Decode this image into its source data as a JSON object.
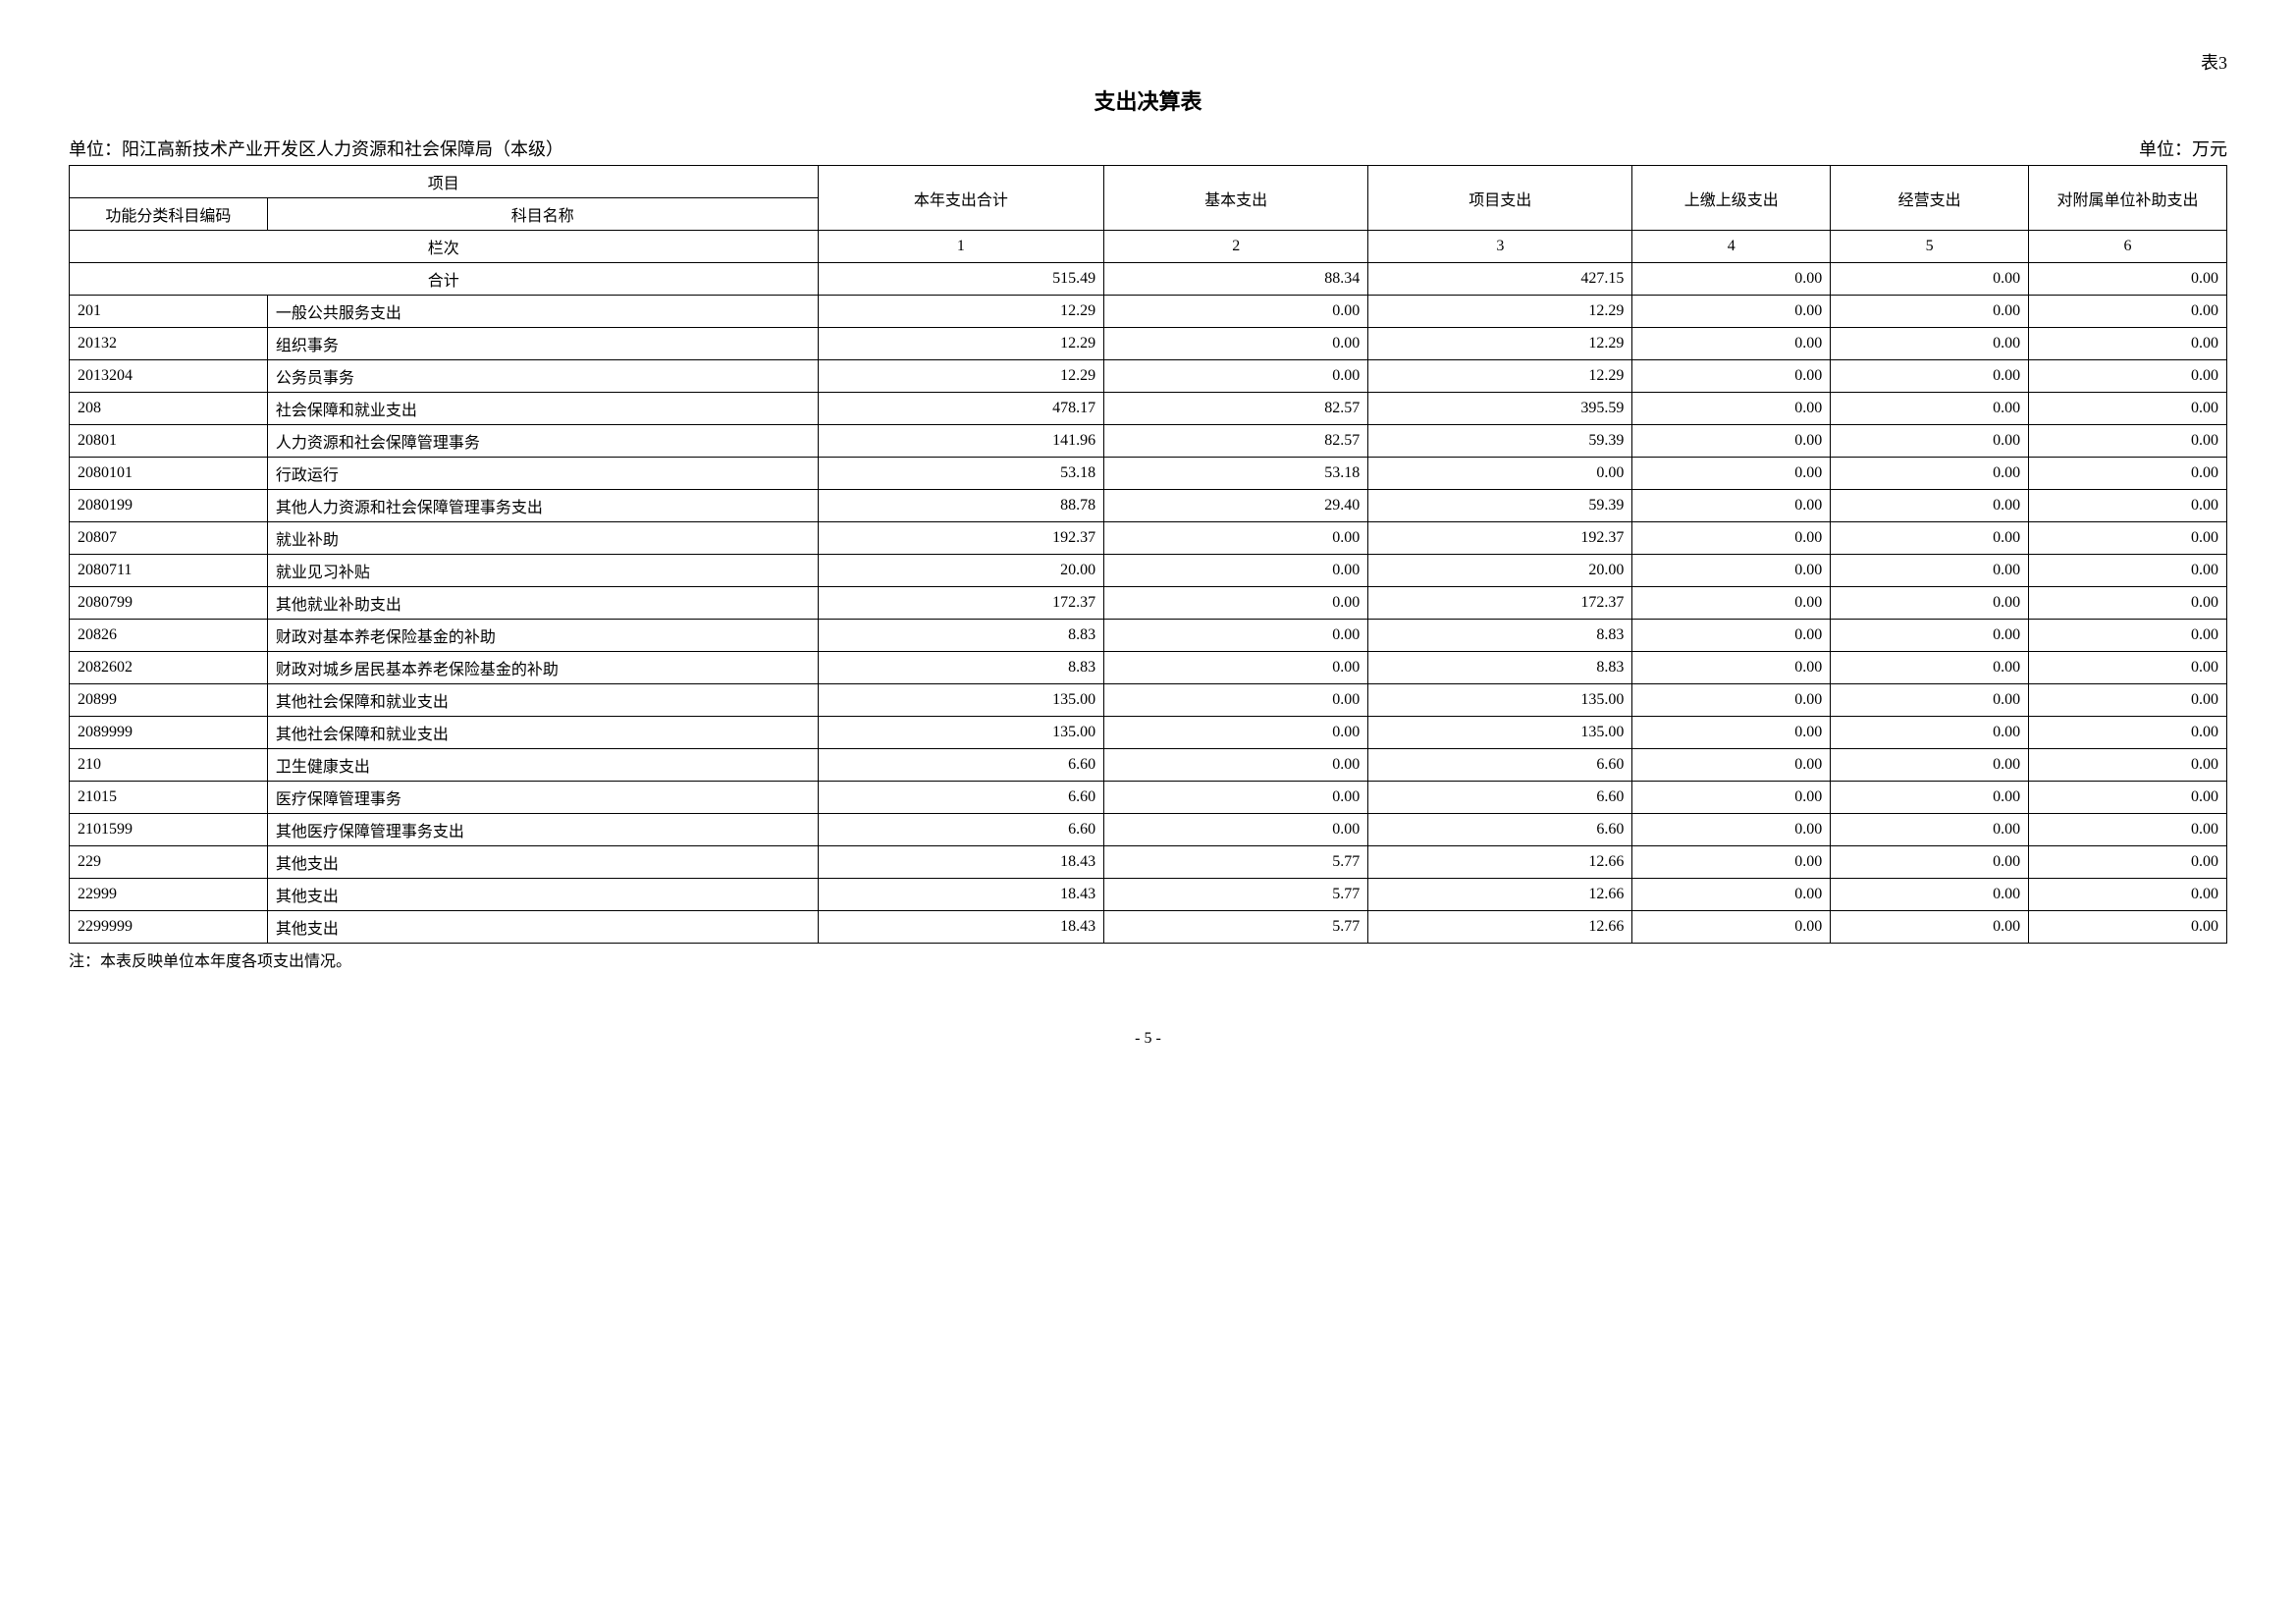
{
  "table_number": "表3",
  "title": "支出决算表",
  "org_label": "单位：阳江高新技术产业开发区人力资源和社会保障局（本级）",
  "unit_label": "单位：万元",
  "headers": {
    "project": "项目",
    "code": "功能分类科目编码",
    "name": "科目名称",
    "col1": "本年支出合计",
    "col2": "基本支出",
    "col3": "项目支出",
    "col4": "上缴上级支出",
    "col5": "经营支出",
    "col6": "对附属单位补助支出",
    "row_label": "栏次",
    "n1": "1",
    "n2": "2",
    "n3": "3",
    "n4": "4",
    "n5": "5",
    "n6": "6",
    "total_label": "合计"
  },
  "total": {
    "v1": "515.49",
    "v2": "88.34",
    "v3": "427.15",
    "v4": "0.00",
    "v5": "0.00",
    "v6": "0.00"
  },
  "rows": [
    {
      "code": "201",
      "name": "一般公共服务支出",
      "v1": "12.29",
      "v2": "0.00",
      "v3": "12.29",
      "v4": "0.00",
      "v5": "0.00",
      "v6": "0.00"
    },
    {
      "code": "20132",
      "name": "组织事务",
      "v1": "12.29",
      "v2": "0.00",
      "v3": "12.29",
      "v4": "0.00",
      "v5": "0.00",
      "v6": "0.00"
    },
    {
      "code": "2013204",
      "name": "公务员事务",
      "v1": "12.29",
      "v2": "0.00",
      "v3": "12.29",
      "v4": "0.00",
      "v5": "0.00",
      "v6": "0.00"
    },
    {
      "code": "208",
      "name": "社会保障和就业支出",
      "v1": "478.17",
      "v2": "82.57",
      "v3": "395.59",
      "v4": "0.00",
      "v5": "0.00",
      "v6": "0.00"
    },
    {
      "code": "20801",
      "name": "人力资源和社会保障管理事务",
      "v1": "141.96",
      "v2": "82.57",
      "v3": "59.39",
      "v4": "0.00",
      "v5": "0.00",
      "v6": "0.00"
    },
    {
      "code": "2080101",
      "name": "行政运行",
      "v1": "53.18",
      "v2": "53.18",
      "v3": "0.00",
      "v4": "0.00",
      "v5": "0.00",
      "v6": "0.00"
    },
    {
      "code": "2080199",
      "name": "其他人力资源和社会保障管理事务支出",
      "v1": "88.78",
      "v2": "29.40",
      "v3": "59.39",
      "v4": "0.00",
      "v5": "0.00",
      "v6": "0.00"
    },
    {
      "code": "20807",
      "name": "就业补助",
      "v1": "192.37",
      "v2": "0.00",
      "v3": "192.37",
      "v4": "0.00",
      "v5": "0.00",
      "v6": "0.00"
    },
    {
      "code": "2080711",
      "name": "就业见习补贴",
      "v1": "20.00",
      "v2": "0.00",
      "v3": "20.00",
      "v4": "0.00",
      "v5": "0.00",
      "v6": "0.00"
    },
    {
      "code": "2080799",
      "name": "其他就业补助支出",
      "v1": "172.37",
      "v2": "0.00",
      "v3": "172.37",
      "v4": "0.00",
      "v5": "0.00",
      "v6": "0.00"
    },
    {
      "code": "20826",
      "name": "财政对基本养老保险基金的补助",
      "v1": "8.83",
      "v2": "0.00",
      "v3": "8.83",
      "v4": "0.00",
      "v5": "0.00",
      "v6": "0.00"
    },
    {
      "code": "2082602",
      "name": "财政对城乡居民基本养老保险基金的补助",
      "v1": "8.83",
      "v2": "0.00",
      "v3": "8.83",
      "v4": "0.00",
      "v5": "0.00",
      "v6": "0.00"
    },
    {
      "code": "20899",
      "name": "其他社会保障和就业支出",
      "v1": "135.00",
      "v2": "0.00",
      "v3": "135.00",
      "v4": "0.00",
      "v5": "0.00",
      "v6": "0.00"
    },
    {
      "code": "2089999",
      "name": "其他社会保障和就业支出",
      "v1": "135.00",
      "v2": "0.00",
      "v3": "135.00",
      "v4": "0.00",
      "v5": "0.00",
      "v6": "0.00"
    },
    {
      "code": "210",
      "name": "卫生健康支出",
      "v1": "6.60",
      "v2": "0.00",
      "v3": "6.60",
      "v4": "0.00",
      "v5": "0.00",
      "v6": "0.00"
    },
    {
      "code": "21015",
      "name": "医疗保障管理事务",
      "v1": "6.60",
      "v2": "0.00",
      "v3": "6.60",
      "v4": "0.00",
      "v5": "0.00",
      "v6": "0.00"
    },
    {
      "code": "2101599",
      "name": "其他医疗保障管理事务支出",
      "v1": "6.60",
      "v2": "0.00",
      "v3": "6.60",
      "v4": "0.00",
      "v5": "0.00",
      "v6": "0.00"
    },
    {
      "code": "229",
      "name": "其他支出",
      "v1": "18.43",
      "v2": "5.77",
      "v3": "12.66",
      "v4": "0.00",
      "v5": "0.00",
      "v6": "0.00"
    },
    {
      "code": "22999",
      "name": "其他支出",
      "v1": "18.43",
      "v2": "5.77",
      "v3": "12.66",
      "v4": "0.00",
      "v5": "0.00",
      "v6": "0.00"
    },
    {
      "code": "2299999",
      "name": "其他支出",
      "v1": "18.43",
      "v2": "5.77",
      "v3": "12.66",
      "v4": "0.00",
      "v5": "0.00",
      "v6": "0.00"
    }
  ],
  "footnote": "注：本表反映单位本年度各项支出情况。",
  "page_number": "- 5 -"
}
